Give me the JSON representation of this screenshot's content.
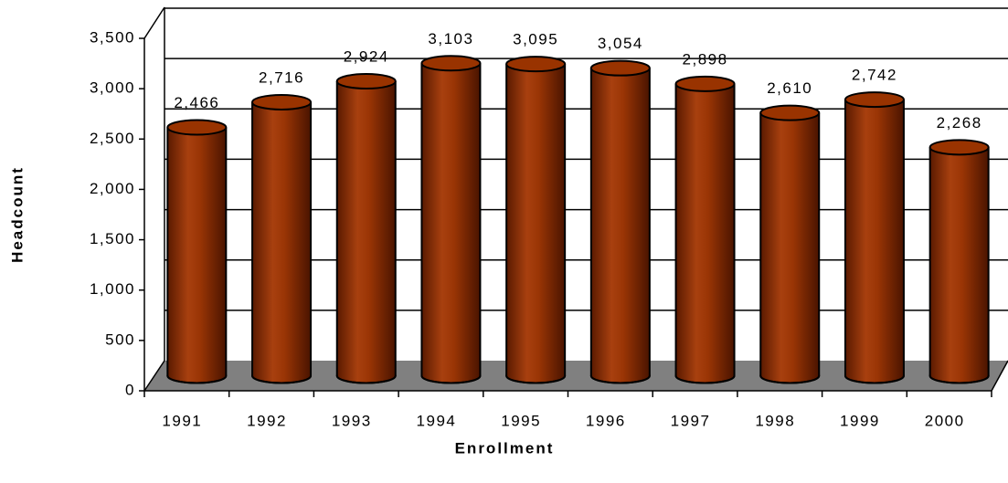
{
  "chart_data": {
    "type": "bar3d",
    "x_label": "Enrollment",
    "y_label": "Headcount",
    "categories": [
      "1991",
      "1992",
      "1993",
      "1994",
      "1995",
      "1996",
      "1997",
      "1998",
      "1999",
      "2000"
    ],
    "values": [
      2466,
      2716,
      2924,
      3103,
      3095,
      3054,
      2898,
      2610,
      2742,
      2268
    ],
    "value_labels": [
      "2,466",
      "2,716",
      "2,924",
      "3,103",
      "3,095",
      "3,054",
      "2,898",
      "2,610",
      "2,742",
      "2,268"
    ],
    "color": "#993300",
    "ylim": [
      0,
      3500
    ],
    "yticks": [
      0,
      500,
      {
        "value": 1000,
        "label": "1,000"
      },
      {
        "value": 1500,
        "label": "1,500"
      },
      {
        "value": 2000,
        "label": "2,000"
      },
      {
        "value": 2500,
        "label": "2,500"
      },
      {
        "value": 3000,
        "label": "3,000"
      },
      {
        "value": 3500,
        "label": "3,500"
      }
    ],
    "grid": true
  }
}
